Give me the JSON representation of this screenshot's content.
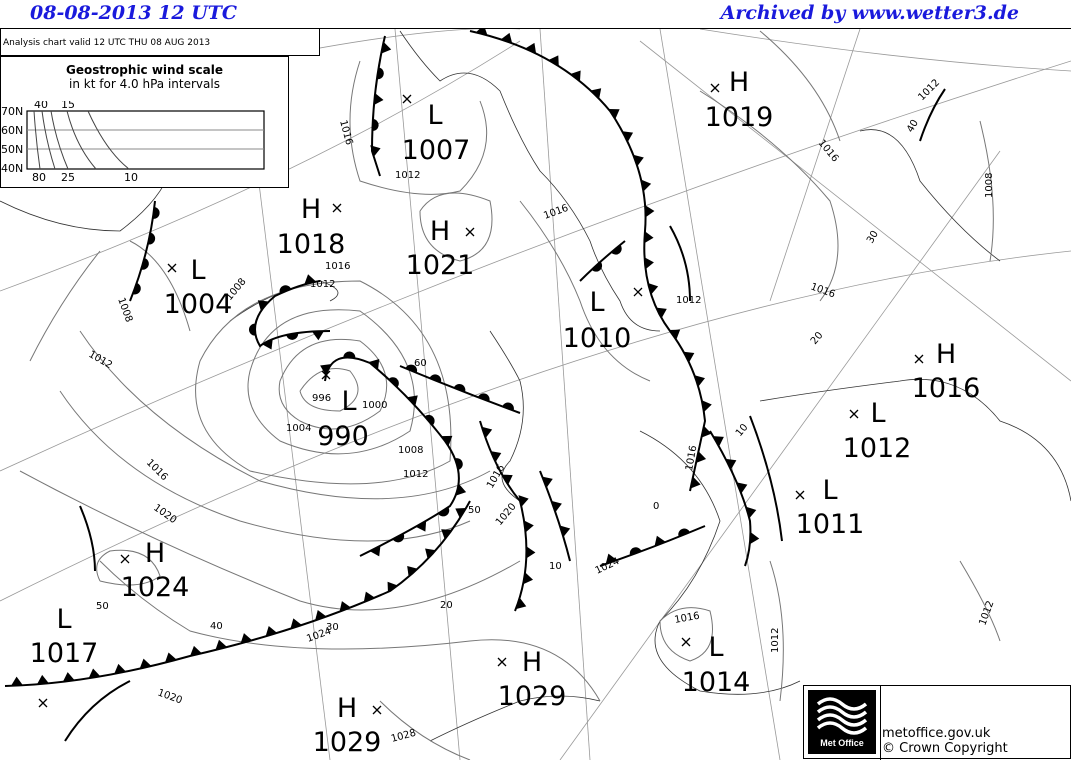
{
  "header": {
    "date": "08-08-2013   12 UTC",
    "archive": "Archived by www.wetter3.de"
  },
  "valid": "Analysis chart  valid 12 UTC THU 08  AUG 2013",
  "scale": {
    "title": "Geostrophic wind scale",
    "subtitle": "in kt for 4.0 hPa intervals",
    "lat_labels": [
      "70N",
      "60N",
      "50N",
      "40N"
    ],
    "top_labels": [
      "40",
      "15"
    ],
    "bottom_labels": [
      "80",
      "25",
      "10"
    ]
  },
  "centers": [
    {
      "type": "L",
      "value": "1007"
    },
    {
      "type": "H",
      "value": "1019"
    },
    {
      "type": "H",
      "value": "1018"
    },
    {
      "type": "H",
      "value": "1021"
    },
    {
      "type": "L",
      "value": "1004"
    },
    {
      "type": "L",
      "value": "1010"
    },
    {
      "type": "L",
      "value": "990"
    },
    {
      "type": "H",
      "value": "1016"
    },
    {
      "type": "L",
      "value": "1012"
    },
    {
      "type": "L",
      "value": "1011"
    },
    {
      "type": "H",
      "value": "1024"
    },
    {
      "type": "L",
      "value": "1017"
    },
    {
      "type": "L",
      "value": "1014"
    },
    {
      "type": "H",
      "value": "1029"
    },
    {
      "type": "H",
      "value": "1029"
    }
  ],
  "isobar_labels": [
    "1016",
    "1012",
    "1016",
    "1012",
    "1008",
    "1008",
    "1012",
    "996",
    "1000",
    "1004",
    "1008",
    "1012",
    "1016",
    "1020",
    "1024",
    "1020",
    "1028",
    "1016",
    "1020",
    "1016",
    "1016",
    "1016",
    "1008",
    "1012",
    "1012",
    "1012",
    "1016",
    "1024",
    "1016",
    "1012"
  ],
  "latitude_labels": [
    "40",
    "30",
    "20",
    "10",
    "0",
    "10",
    "20",
    "30",
    "40",
    "50",
    "50",
    "60"
  ],
  "footer": {
    "logo": "Met Office",
    "site": "metoffice.gov.uk",
    "copyright": "© Crown Copyright"
  },
  "colors": {
    "header": "#1a1adc",
    "isobar": "#777777",
    "front": "#000000"
  }
}
